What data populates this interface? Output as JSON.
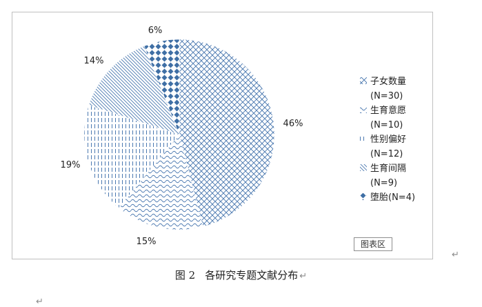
{
  "chart_data": {
    "type": "pie",
    "slices": [
      {
        "name": "子女数量",
        "legend_line1": "子女数量",
        "legend_line2": "(N=30)",
        "value": 46,
        "label": "46%",
        "pattern": "diamond-outline"
      },
      {
        "name": "生育意愿",
        "legend_line1": "生育意愿",
        "legend_line2": "(N=10)",
        "value": 15,
        "label": "15%",
        "pattern": "wave"
      },
      {
        "name": "性别偏好",
        "legend_line1": "性别偏好",
        "legend_line2": "(N=12)",
        "value": 19,
        "label": "19%",
        "pattern": "dashed-vertical"
      },
      {
        "name": "生育间隔",
        "legend_line1": "生育间隔",
        "legend_line2": "(N=9)",
        "value": 14,
        "label": "14%",
        "pattern": "diagonal-lines"
      },
      {
        "name": "堕胎",
        "legend_line1": "堕胎(N=4)",
        "legend_line2": "",
        "value": 6,
        "label": "6%",
        "pattern": "filled-diamonds"
      }
    ],
    "legend_position": "right",
    "color": "#3f6fa5"
  },
  "chart_area_tag": "图表区",
  "caption": {
    "number": "图 2",
    "text": "各研究专题文献分布"
  },
  "return_mark": "↵"
}
